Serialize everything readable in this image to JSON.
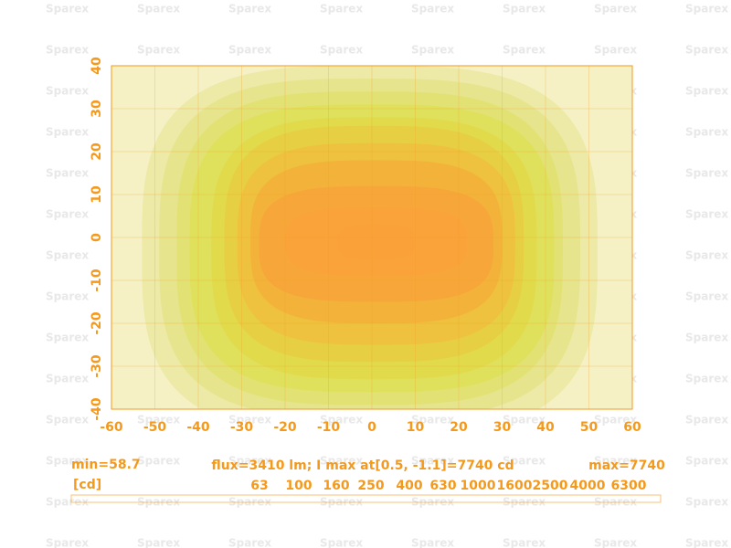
{
  "chart_data": {
    "type": "contour",
    "watermark": "Sparex",
    "xlim": [
      -60,
      60
    ],
    "ylim": [
      -40,
      40
    ],
    "xticks": [
      -60,
      -50,
      -40,
      -30,
      -20,
      -10,
      0,
      10,
      20,
      30,
      40,
      50,
      60
    ],
    "yticks": [
      -40,
      -30,
      -20,
      -10,
      0,
      10,
      20,
      30,
      40
    ],
    "grid": true,
    "background": "#f5f1c4",
    "axis_color": "#f39a1e",
    "min_label": "min=58.7",
    "unit_label": "[cd]",
    "info": "flux=3410 lm; I max  at[0.5, -1.1]=7740 cd",
    "max_label": "max=7740",
    "contours": [
      {
        "level": 63,
        "color": "#ede9a6",
        "x": [
          -53,
          52
        ],
        "y": [
          -46,
          40
        ]
      },
      {
        "level": 100,
        "color": "#e6e48c",
        "x": [
          -49,
          48
        ],
        "y": [
          -42,
          37
        ]
      },
      {
        "level": 160,
        "color": "#e2e274",
        "x": [
          -45,
          44
        ],
        "y": [
          -39,
          34
        ]
      },
      {
        "level": 250,
        "color": "#dfe05c",
        "x": [
          -42,
          42
        ],
        "y": [
          -36,
          31
        ]
      },
      {
        "level": 400,
        "color": "#e1db4c",
        "x": [
          -37,
          38
        ],
        "y": [
          -33,
          28
        ]
      },
      {
        "level": 630,
        "color": "#e7cf44",
        "x": [
          -34,
          35
        ],
        "y": [
          -29,
          26
        ]
      },
      {
        "level": 1000,
        "color": "#eec23e",
        "x": [
          -31,
          33
        ],
        "y": [
          -25,
          22
        ]
      },
      {
        "level": 1600,
        "color": "#f3b33b",
        "x": [
          -28,
          30
        ],
        "y": [
          -20,
          18
        ]
      },
      {
        "level": 2500,
        "color": "#f7a73a",
        "x": [
          -26,
          28
        ],
        "y": [
          -15,
          12
        ]
      },
      {
        "level": 4000,
        "color": "#f9a33a",
        "x": [
          -20,
          22
        ],
        "y": [
          -9,
          7
        ]
      },
      {
        "level": 6300,
        "color": "#faa13a",
        "x": [
          -8,
          10
        ],
        "y": [
          -5,
          3
        ]
      }
    ]
  }
}
